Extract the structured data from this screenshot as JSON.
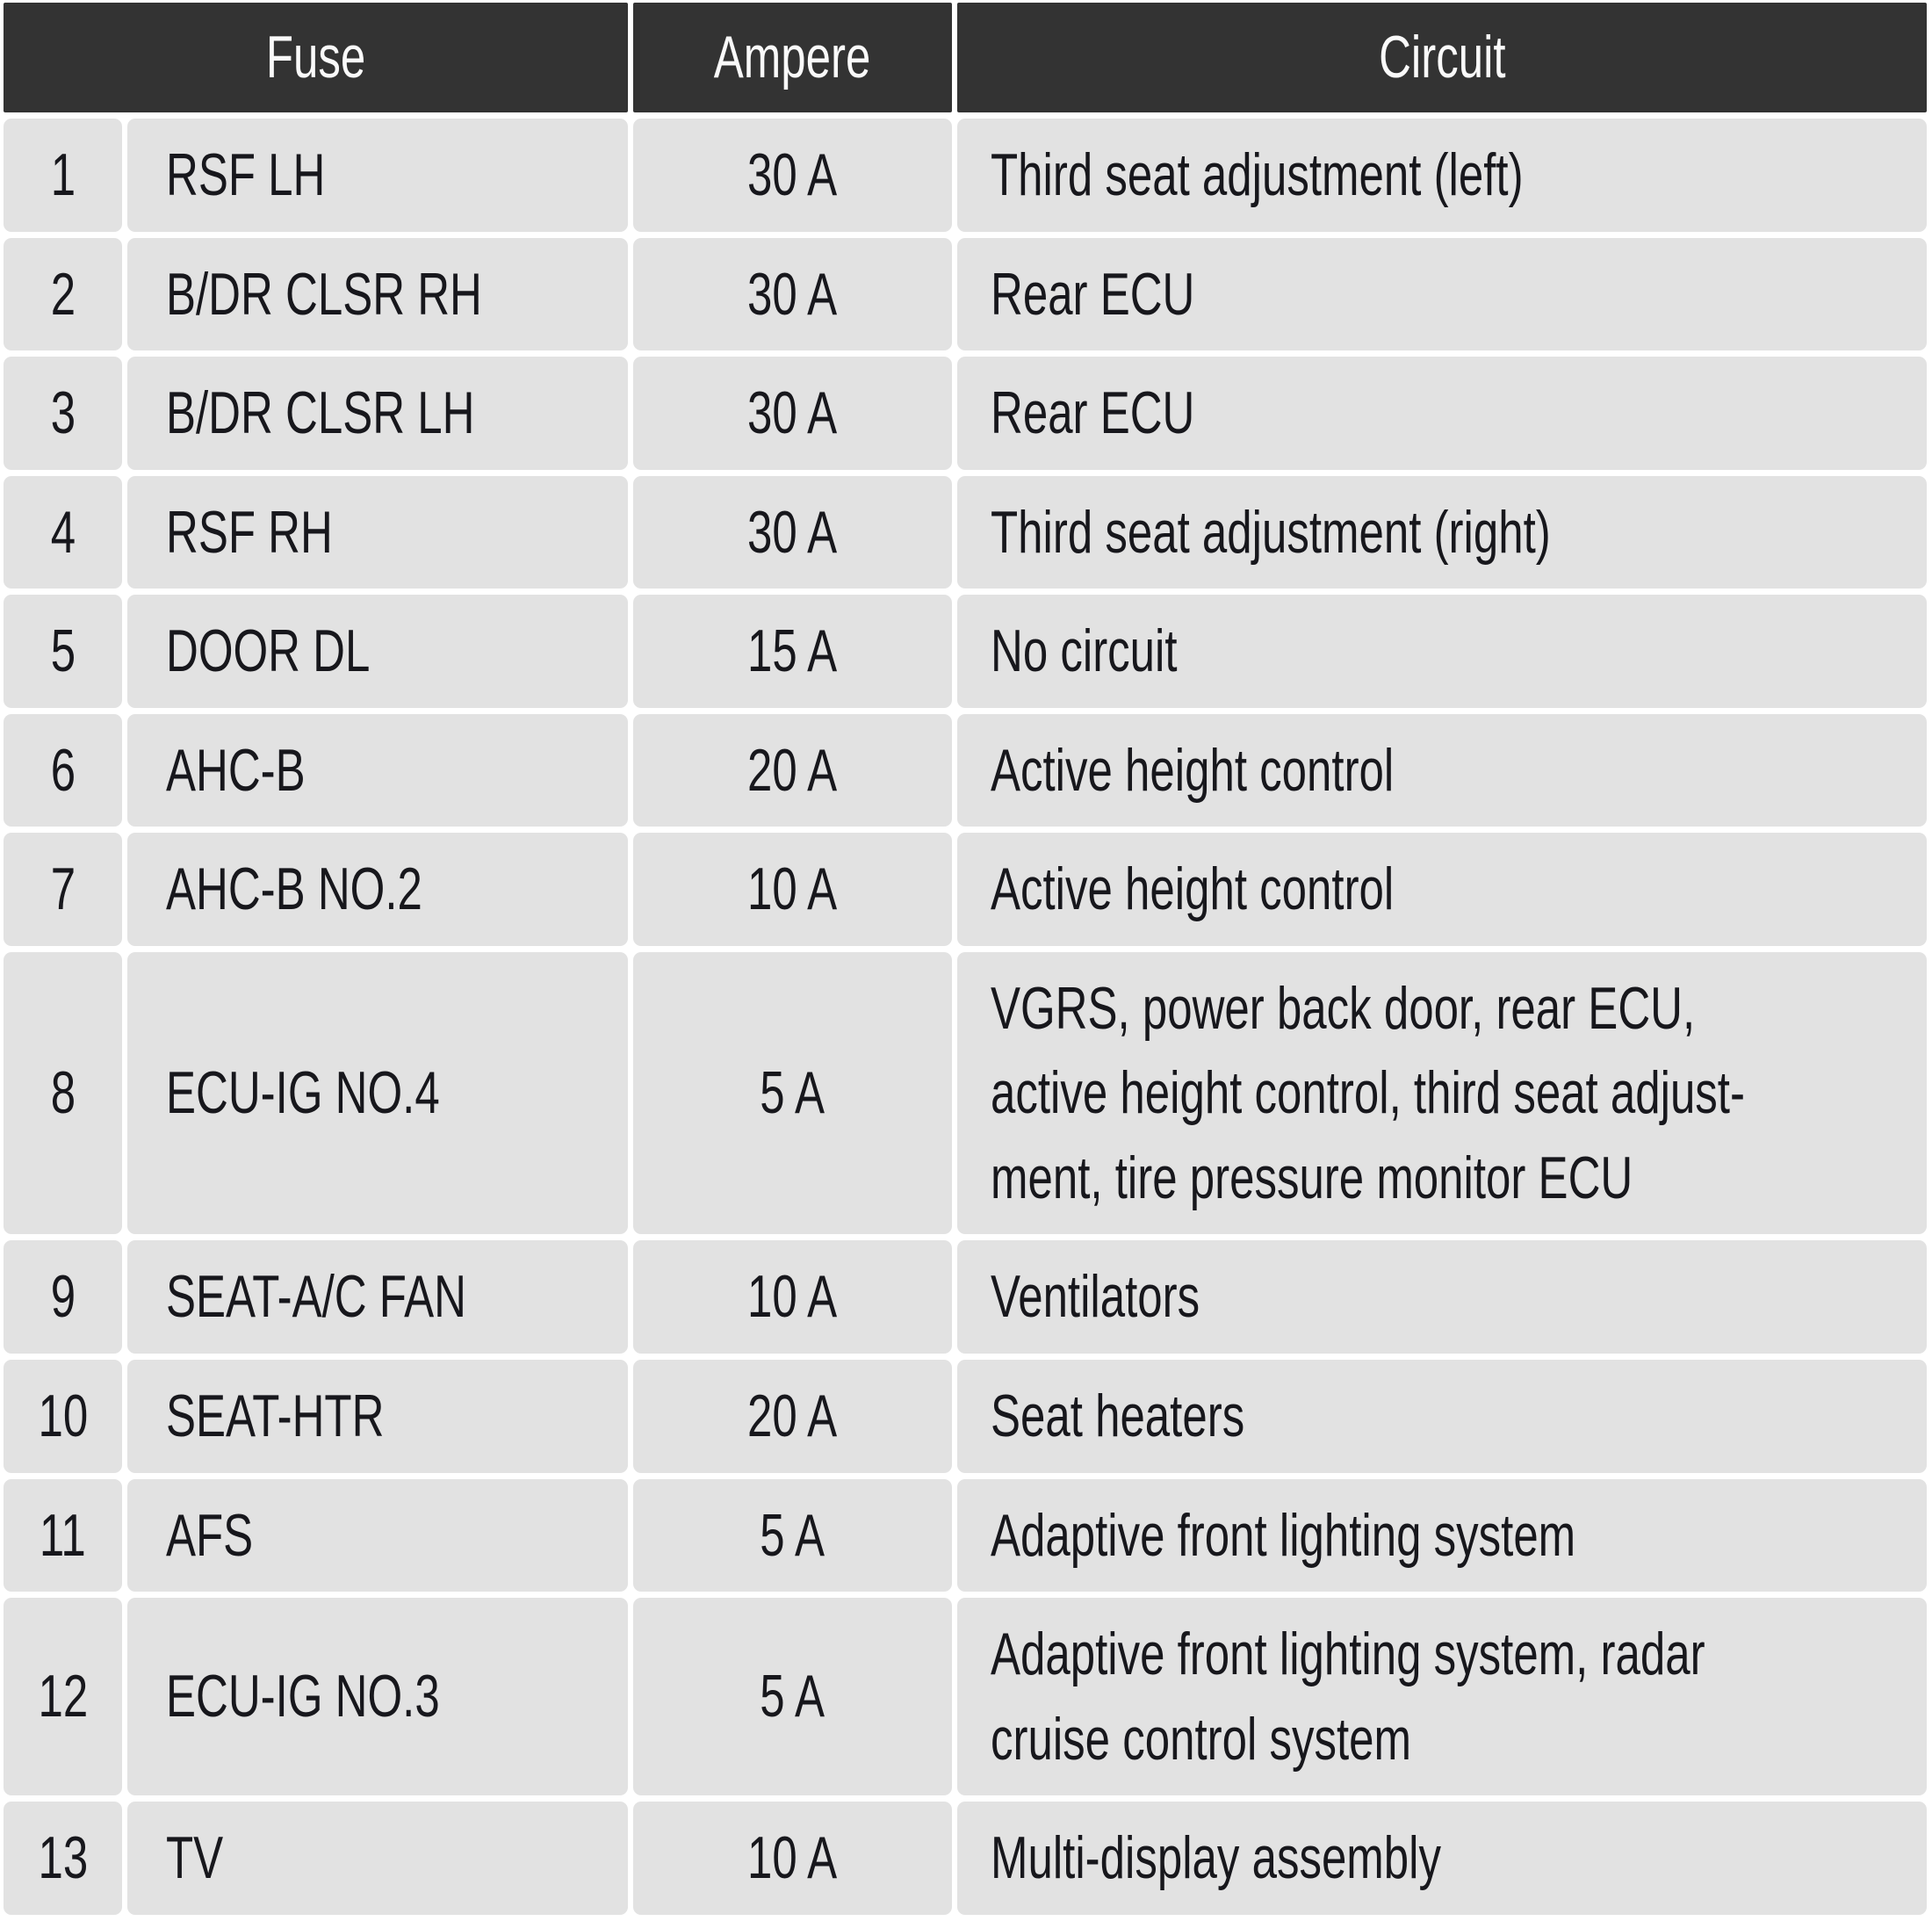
{
  "table": {
    "headers": {
      "fuse": "Fuse",
      "ampere": "Ampere",
      "circuit": "Circuit"
    },
    "rows": [
      {
        "num": "1",
        "fuse": "RSF LH",
        "ampere": "30 A",
        "circuit": "Third seat adjustment (left)"
      },
      {
        "num": "2",
        "fuse": "B/DR CLSR RH",
        "ampere": "30 A",
        "circuit": "Rear ECU"
      },
      {
        "num": "3",
        "fuse": "B/DR CLSR LH",
        "ampere": "30 A",
        "circuit": "Rear ECU"
      },
      {
        "num": "4",
        "fuse": "RSF RH",
        "ampere": "30 A",
        "circuit": "Third seat adjustment (right)"
      },
      {
        "num": "5",
        "fuse": "DOOR DL",
        "ampere": "15 A",
        "circuit": "No circuit"
      },
      {
        "num": "6",
        "fuse": "AHC-B",
        "ampere": "20 A",
        "circuit": "Active height control"
      },
      {
        "num": "7",
        "fuse": "AHC-B NO.2",
        "ampere": "10 A",
        "circuit": "Active height control"
      },
      {
        "num": "8",
        "fuse": "ECU-IG NO.4",
        "ampere": "5 A",
        "circuit": "VGRS, power back door, rear ECU,\nactive height control, third seat adjust-\nment, tire pressure monitor ECU"
      },
      {
        "num": "9",
        "fuse": "SEAT-A/C FAN",
        "ampere": "10 A",
        "circuit": "Ventilators"
      },
      {
        "num": "10",
        "fuse": "SEAT-HTR",
        "ampere": "20 A",
        "circuit": "Seat heaters"
      },
      {
        "num": "11",
        "fuse": "AFS",
        "ampere": "5 A",
        "circuit": "Adaptive front lighting system"
      },
      {
        "num": "12",
        "fuse": "ECU-IG NO.3",
        "ampere": "5 A",
        "circuit": "Adaptive front lighting system, radar\ncruise control system"
      },
      {
        "num": "13",
        "fuse": "TV",
        "ampere": "10 A",
        "circuit": "Multi-display assembly"
      }
    ]
  },
  "colors": {
    "header_bg": "#333333",
    "header_text": "#fafafa",
    "cell_bg": "#e2e2e2",
    "cell_text": "#17171c",
    "gutter": "#ffffff"
  }
}
